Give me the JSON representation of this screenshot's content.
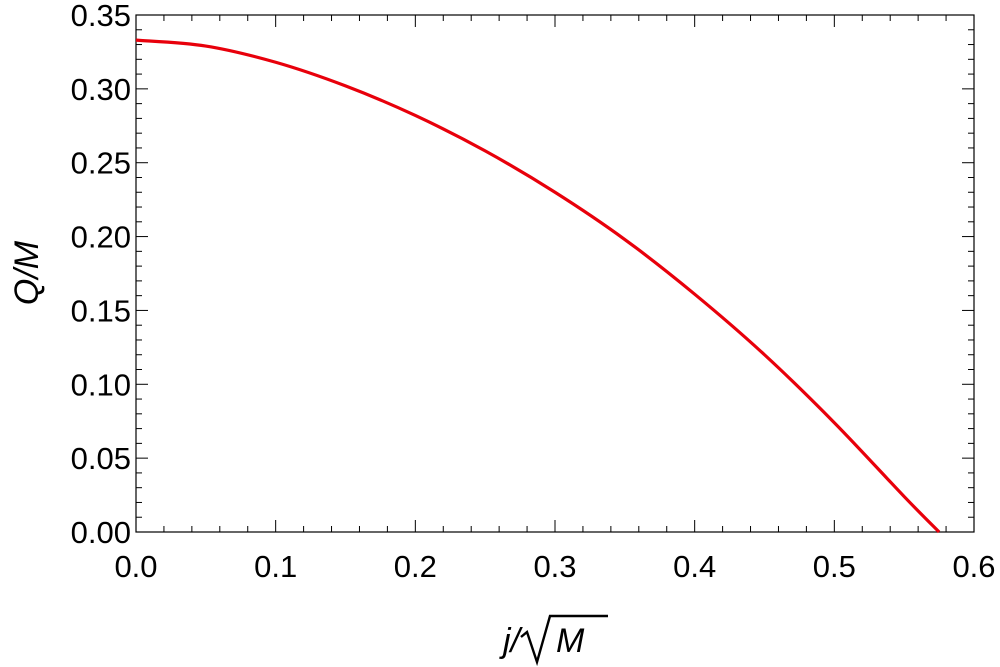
{
  "chart_data": {
    "type": "line",
    "xlabel": "j/√M",
    "ylabel": "Q/M",
    "xlabel_parts": {
      "prefix": "j/",
      "radicand": "M"
    },
    "xlim": [
      0.0,
      0.6
    ],
    "ylim": [
      0.0,
      0.35
    ],
    "x_ticks": [
      "0.0",
      "0.1",
      "0.2",
      "0.3",
      "0.4",
      "0.5",
      "0.6"
    ],
    "y_ticks": [
      "0.00",
      "0.05",
      "0.10",
      "0.15",
      "0.20",
      "0.25",
      "0.30",
      "0.35"
    ],
    "grid": false,
    "series": [
      {
        "color": "#e8000b",
        "x": [
          0.0,
          0.05,
          0.1,
          0.15,
          0.2,
          0.25,
          0.3,
          0.35,
          0.4,
          0.45,
          0.5,
          0.55,
          0.575
        ],
        "y": [
          0.333,
          0.329,
          0.318,
          0.302,
          0.282,
          0.258,
          0.23,
          0.198,
          0.161,
          0.12,
          0.074,
          0.024,
          0.0
        ]
      }
    ]
  }
}
